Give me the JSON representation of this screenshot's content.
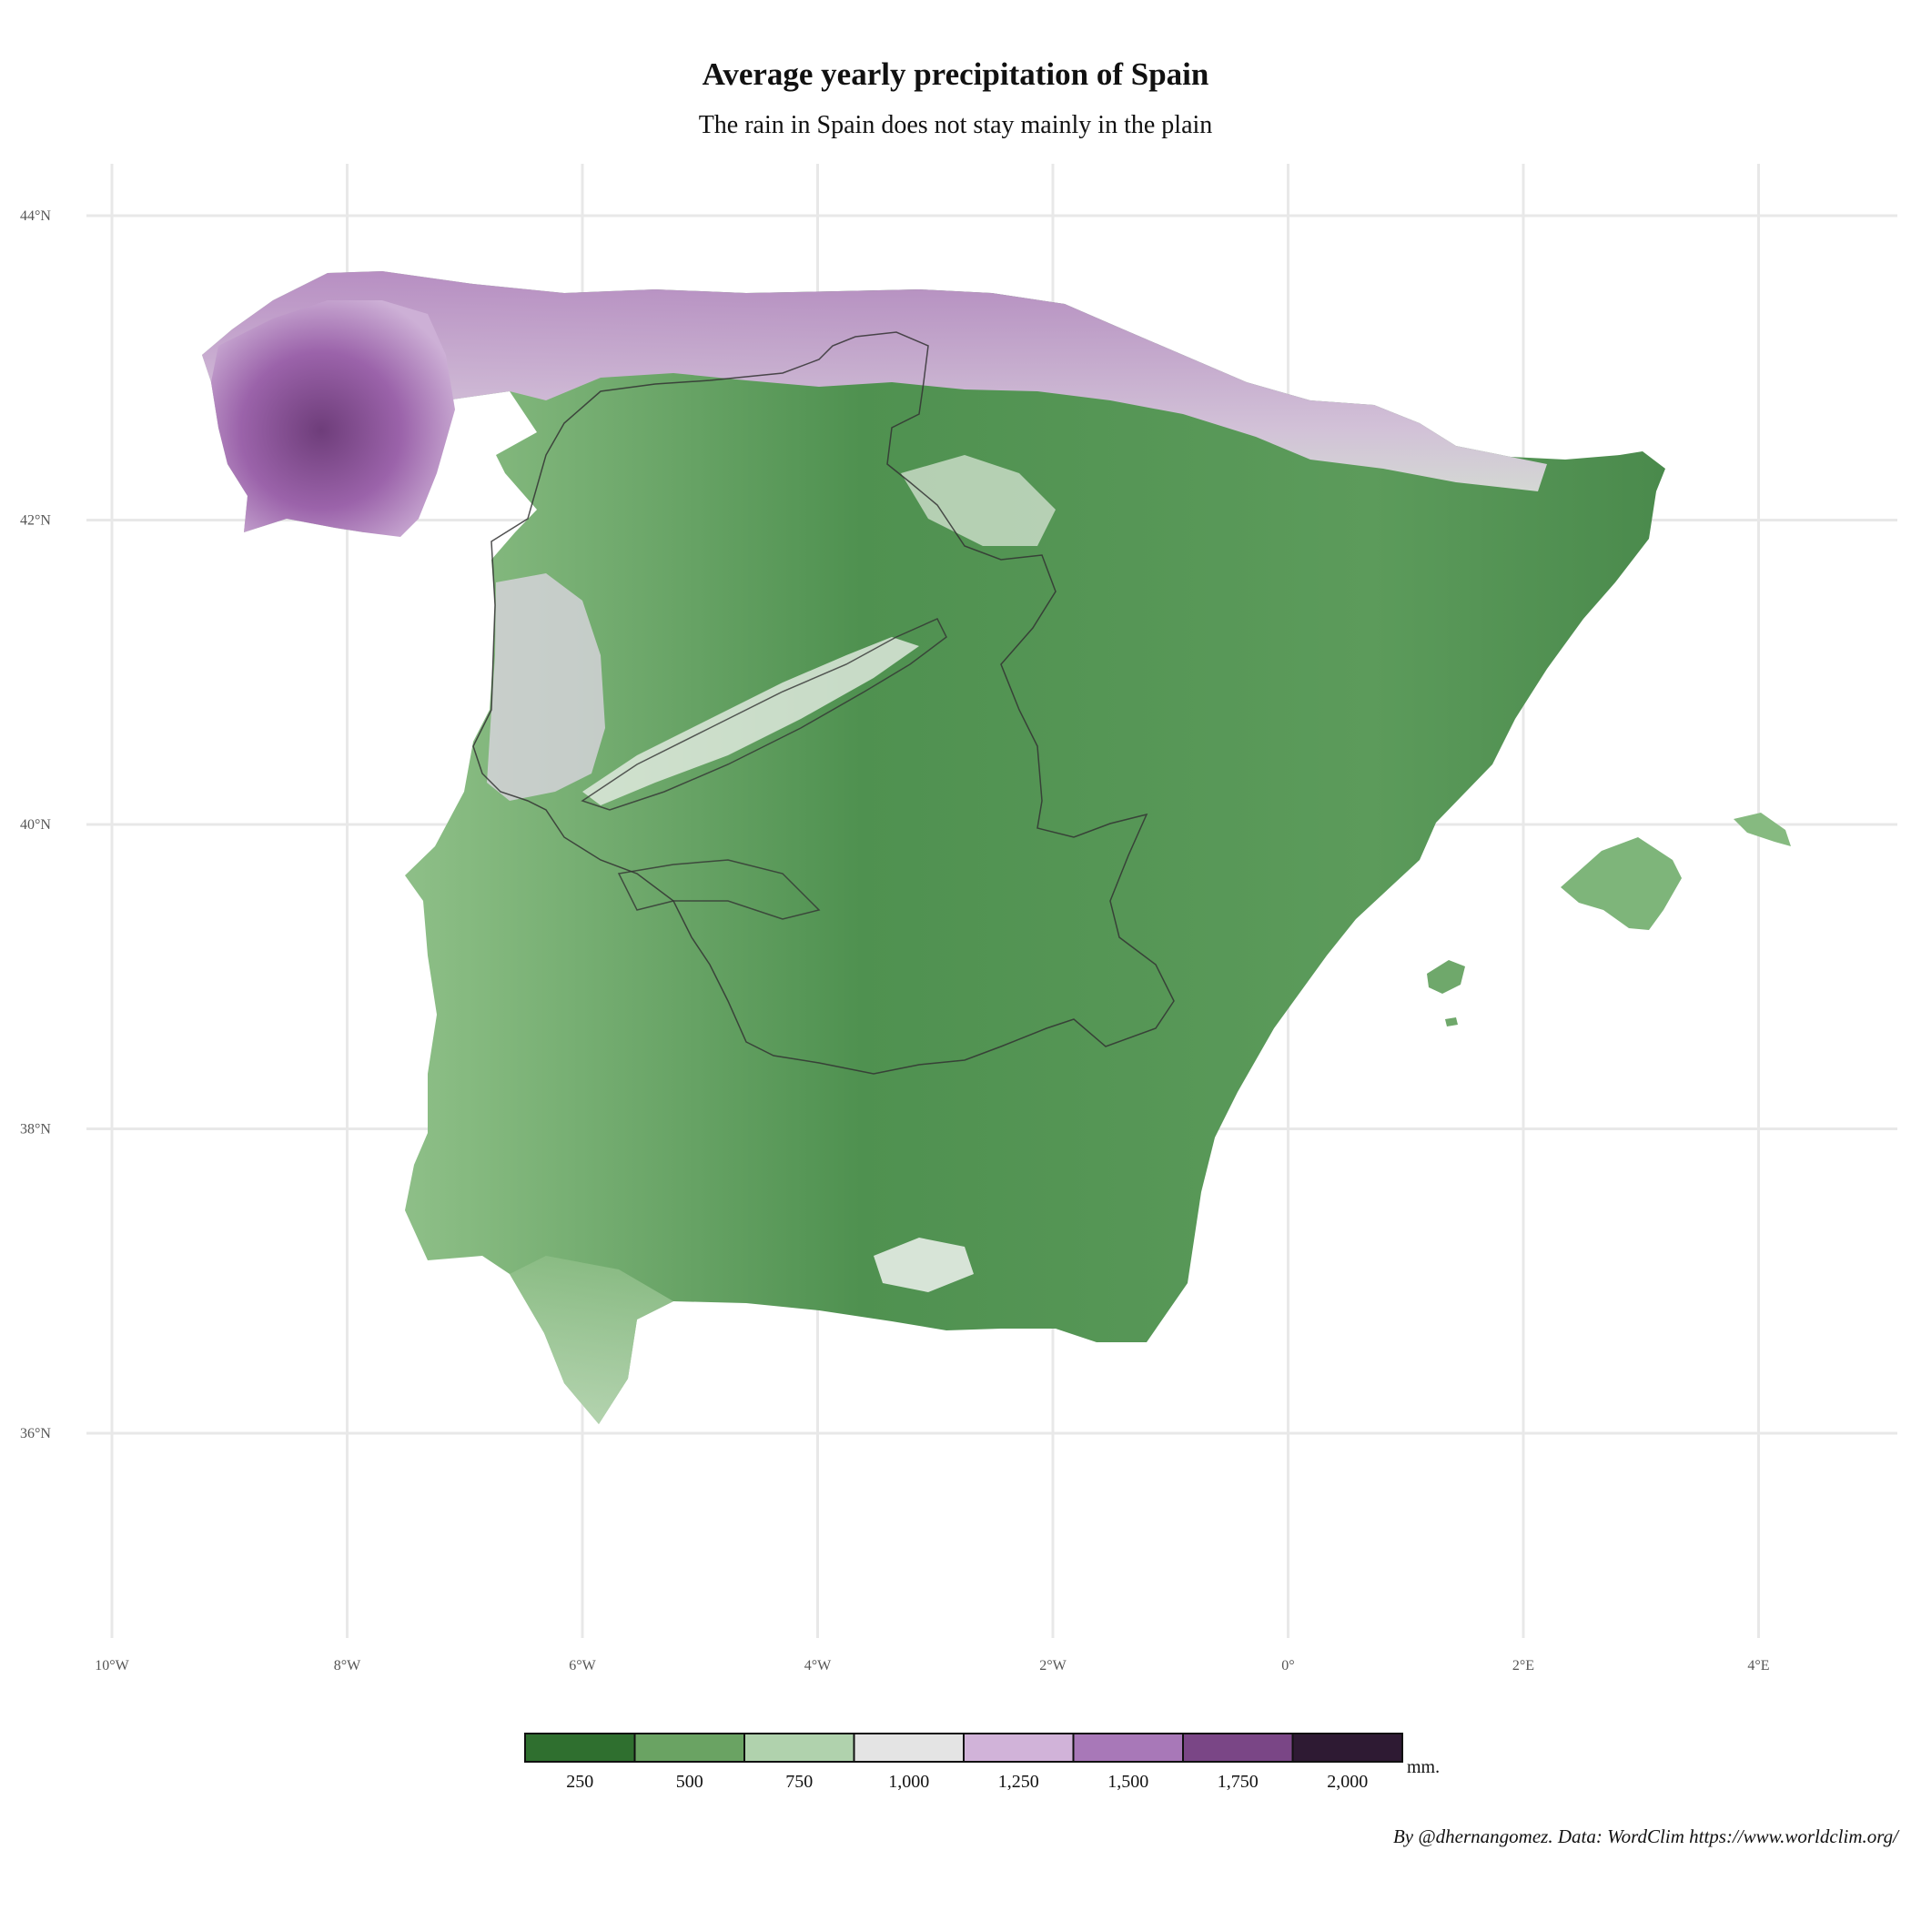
{
  "title": "Average yearly precipitation of Spain",
  "subtitle": "The rain in Spain does not stay mainly in the plain",
  "caption": "By @dhernangomez.  Data: WordClim https://www.worldclim.org/",
  "axes": {
    "lon_ticks": [
      {
        "value": -10,
        "label": "10°W"
      },
      {
        "value": -8,
        "label": "8°W"
      },
      {
        "value": -6,
        "label": "6°W"
      },
      {
        "value": -4,
        "label": "4°W"
      },
      {
        "value": -2,
        "label": "2°W"
      },
      {
        "value": 0,
        "label": "0°"
      },
      {
        "value": 2,
        "label": "2°E"
      },
      {
        "value": 4,
        "label": "4°E"
      }
    ],
    "lat_ticks": [
      {
        "value": 44,
        "label": "44°N"
      },
      {
        "value": 42,
        "label": "42°N"
      },
      {
        "value": 40,
        "label": "40°N"
      },
      {
        "value": 38,
        "label": "38°N"
      },
      {
        "value": 36,
        "label": "36°N"
      }
    ],
    "grid": true
  },
  "legend": {
    "unit": "mm.",
    "breaks": [
      "250",
      "500",
      "750",
      "1,000",
      "1,250",
      "1,500",
      "1,750",
      "2,000"
    ],
    "colors": [
      "#2f6f2f",
      "#6aa363",
      "#b0d2ad",
      "#e4e4e4",
      "#d1b3d9",
      "#a878b8",
      "#7a4686",
      "#2e1a33"
    ]
  },
  "map_colors": {
    "dry_green": "#4f9150",
    "mid_green": "#86ba80",
    "pale": "#dcebd8",
    "wet_purple": "#b47fc0",
    "very_wet": "#6e3d7a",
    "outline": "#333333"
  }
}
